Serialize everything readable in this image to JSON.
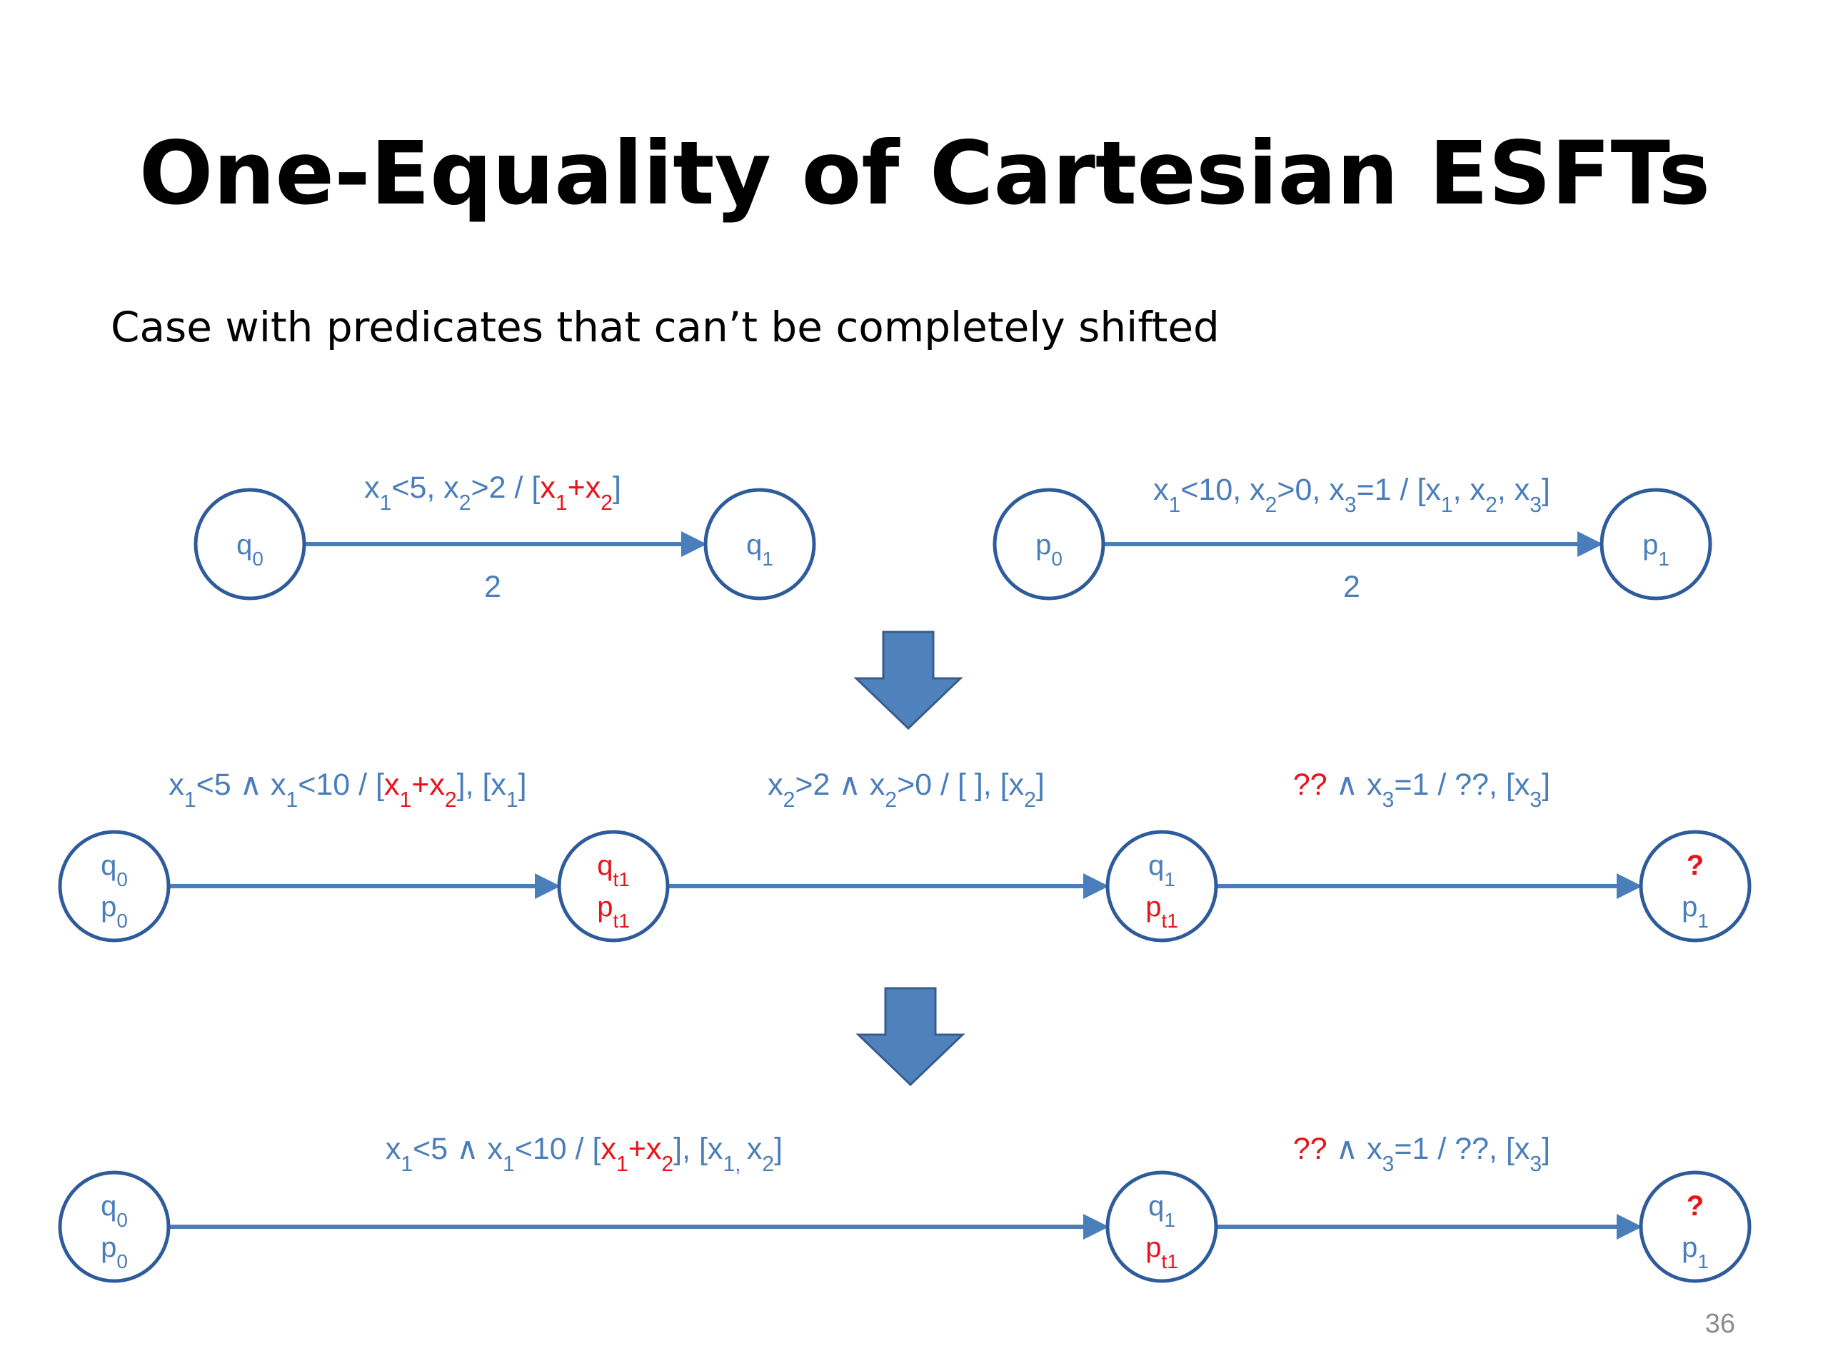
{
  "title": "One-Equality of Cartesian ESFTs",
  "subtitle": "Case with predicates that can’t be completely shifted",
  "text_color": "#4a7ebb",
  "highlight_color": "#e8141b",
  "page_number": "36",
  "diagrams": [
    {
      "nodes": [
        {
          "lines": [
            [
              {
                "text": "q"
              },
              {
                "sub": "0"
              }
            ]
          ]
        },
        {
          "lines": [
            [
              {
                "text": "q"
              },
              {
                "sub": "1"
              }
            ]
          ]
        }
      ],
      "edges": [
        {
          "label": [
            {
              "text": "x"
            },
            {
              "sub": "1"
            },
            {
              "text": "<5, x"
            },
            {
              "sub": "2"
            },
            {
              "text": ">2 / ["
            },
            {
              "text": "x",
              "highlight": true
            },
            {
              "sub": "1",
              "highlight": true
            },
            {
              "text": "+x",
              "highlight": true
            },
            {
              "sub": "2",
              "highlight": true
            },
            {
              "text": "]"
            }
          ],
          "weight": "2"
        }
      ]
    },
    {
      "nodes": [
        {
          "lines": [
            [
              {
                "text": "p"
              },
              {
                "sub": "0"
              }
            ]
          ]
        },
        {
          "lines": [
            [
              {
                "text": "p"
              },
              {
                "sub": "1"
              }
            ]
          ]
        }
      ],
      "edges": [
        {
          "label": [
            {
              "text": "x"
            },
            {
              "sub": "1"
            },
            {
              "text": "<10, x"
            },
            {
              "sub": "2"
            },
            {
              "text": ">0, x"
            },
            {
              "sub": "3"
            },
            {
              "text": "=1 / [x"
            },
            {
              "sub": "1"
            },
            {
              "text": ", x"
            },
            {
              "sub": "2"
            },
            {
              "text": ", x"
            },
            {
              "sub": "3"
            },
            {
              "text": "]"
            }
          ],
          "weight": "2"
        }
      ]
    },
    {
      "nodes": [
        {
          "lines": [
            [
              {
                "text": "q"
              },
              {
                "sub": "0"
              }
            ],
            [
              {
                "text": "p"
              },
              {
                "sub": "0"
              }
            ]
          ]
        },
        {
          "lines": [
            [
              {
                "text": "q",
                "highlight": true
              },
              {
                "sub": "t1",
                "highlight": true
              }
            ],
            [
              {
                "text": "p",
                "highlight": true
              },
              {
                "sub": "t1",
                "highlight": true
              }
            ]
          ]
        },
        {
          "lines": [
            [
              {
                "text": "q"
              },
              {
                "sub": "1"
              }
            ],
            [
              {
                "text": "p",
                "highlight": true
              },
              {
                "sub": "t1",
                "highlight": true
              }
            ]
          ]
        },
        {
          "lines": [
            [
              {
                "text": "?",
                "highlight": true,
                "bold": true
              }
            ],
            [
              {
                "text": "p"
              },
              {
                "sub": "1"
              }
            ]
          ]
        }
      ],
      "edges": [
        {
          "label": [
            {
              "text": "x"
            },
            {
              "sub": "1"
            },
            {
              "text": "<5 ∧ x"
            },
            {
              "sub": "1"
            },
            {
              "text": "<10 / ["
            },
            {
              "text": "x",
              "highlight": true
            },
            {
              "sub": "1",
              "highlight": true
            },
            {
              "text": "+x",
              "highlight": true
            },
            {
              "sub": "2",
              "highlight": true
            },
            {
              "text": "], [x"
            },
            {
              "sub": "1"
            },
            {
              "text": "]"
            }
          ]
        },
        {
          "label": [
            {
              "text": "x"
            },
            {
              "sub": "2"
            },
            {
              "text": ">2 ∧ x"
            },
            {
              "sub": "2"
            },
            {
              "text": ">0 / [ ], [x"
            },
            {
              "sub": "2"
            },
            {
              "text": "]"
            }
          ]
        },
        {
          "label": [
            {
              "text": "??",
              "highlight": true
            },
            {
              "text": " ∧ x"
            },
            {
              "sub": "3"
            },
            {
              "text": "=1 / ??, [x"
            },
            {
              "sub": "3"
            },
            {
              "text": "]"
            }
          ]
        }
      ]
    },
    {
      "nodes": [
        {
          "lines": [
            [
              {
                "text": "q"
              },
              {
                "sub": "0"
              }
            ],
            [
              {
                "text": "p"
              },
              {
                "sub": "0"
              }
            ]
          ]
        },
        {
          "lines": [
            [
              {
                "text": "q"
              },
              {
                "sub": "1"
              }
            ],
            [
              {
                "text": "p",
                "highlight": true
              },
              {
                "sub": "t1",
                "highlight": true
              }
            ]
          ]
        },
        {
          "lines": [
            [
              {
                "text": "?",
                "highlight": true,
                "bold": true
              }
            ],
            [
              {
                "text": "p"
              },
              {
                "sub": "1"
              }
            ]
          ]
        }
      ],
      "edges": [
        {
          "label": [
            {
              "text": "x"
            },
            {
              "sub": "1"
            },
            {
              "text": "<5 ∧ x"
            },
            {
              "sub": "1"
            },
            {
              "text": "<10 / ["
            },
            {
              "text": "x",
              "highlight": true
            },
            {
              "sub": "1",
              "highlight": true
            },
            {
              "text": "+x",
              "highlight": true
            },
            {
              "sub": "2",
              "highlight": true
            },
            {
              "text": "], [x"
            },
            {
              "sub": "1, "
            },
            {
              "text": "x"
            },
            {
              "sub": "2"
            },
            {
              "text": "]"
            }
          ]
        },
        {
          "label": [
            {
              "text": "??",
              "highlight": true
            },
            {
              "text": " ∧ x"
            },
            {
              "sub": "3"
            },
            {
              "text": "=1 / ??, [x"
            },
            {
              "sub": "3"
            },
            {
              "text": "]"
            }
          ]
        }
      ]
    }
  ]
}
